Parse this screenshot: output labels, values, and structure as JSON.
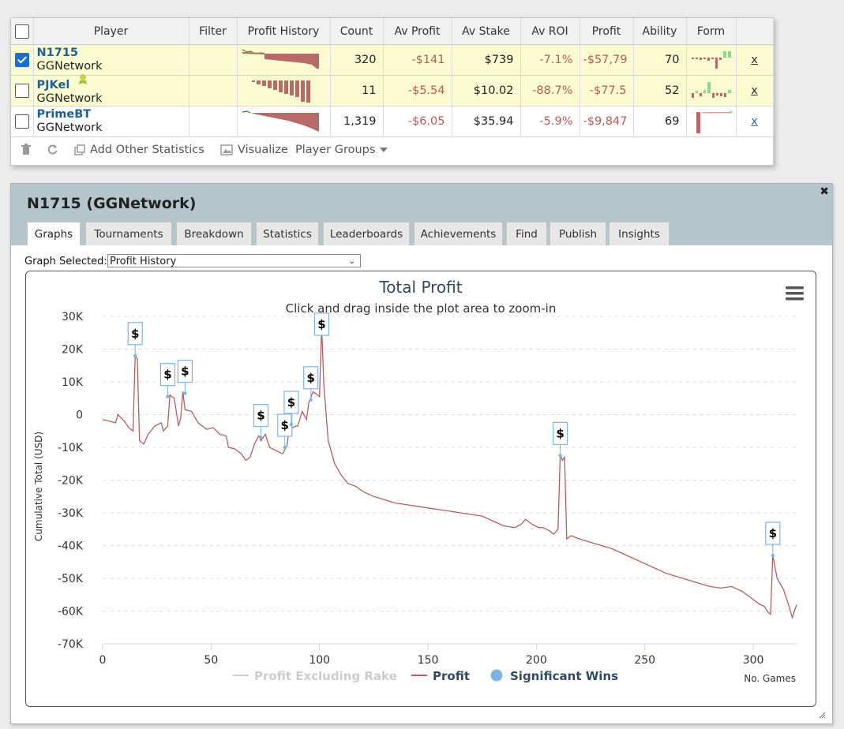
{
  "players_table": {
    "columns": [
      "Player",
      "Filter",
      "Profit History",
      "Count",
      "Av Profit",
      "Av Stake",
      "Av ROI",
      "Profit",
      "Ability",
      "Form"
    ],
    "rows": [
      {
        "name": "N1715",
        "network": "GGNetwork",
        "checked": true,
        "count": "320",
        "av_profit": "-$141",
        "av_stake": "$739",
        "av_roi": "-7.1%",
        "profit": "-$57,79",
        "ability": "70",
        "remove": "x"
      },
      {
        "name": "PJKel",
        "network": "GGNetwork",
        "checked": false,
        "count": "11",
        "av_profit": "-$5.54",
        "av_stake": "$10.02",
        "av_roi": "-88.7%",
        "profit": "-$77.5",
        "ability": "52",
        "remove": "x"
      },
      {
        "name": "PrimeBT",
        "network": "GGNetwork",
        "checked": false,
        "count": "1,319",
        "av_profit": "-$6.05",
        "av_stake": "$35.94",
        "av_roi": "-5.9%",
        "profit": "-$9,847",
        "ability": "69",
        "remove": "x"
      }
    ],
    "toolbar": {
      "add_stats": "Add Other Statistics",
      "visualize": "Visualize",
      "player_groups": "Player Groups"
    }
  },
  "panel": {
    "title": "N1715 (GGNetwork)",
    "tabs": [
      "Graphs",
      "Tournaments",
      "Breakdown",
      "Statistics",
      "Leaderboards",
      "Achievements",
      "Find",
      "Publish",
      "Insights"
    ],
    "active_tab": "Graphs",
    "graph_selected_label": "Graph Selected:",
    "graph_selected_value": "Profit History"
  },
  "chart_data": {
    "type": "line",
    "title": "Total Profit",
    "subtitle": "Click and drag inside the plot area to zoom-in",
    "xlabel": "No. Games",
    "ylabel": "Cumulative Total (USD)",
    "xlim": [
      0,
      320
    ],
    "ylim": [
      -70000,
      30000
    ],
    "x_ticks": [
      "0",
      "50",
      "100",
      "150",
      "200",
      "250",
      "300"
    ],
    "y_ticks": [
      "30K",
      "20K",
      "10K",
      "0",
      "-10K",
      "-20K",
      "-30K",
      "-40K",
      "-50K",
      "-60K",
      "-70K"
    ],
    "grid": "horizontal dashed",
    "legend": [
      "Profit Excluding Rake",
      "Profit",
      "Significant Wins"
    ],
    "legend_position": "bottom-center",
    "colors": {
      "profit": "#b0615c",
      "excl_rake": "#cccccc",
      "wins": "#7db4e6",
      "title": "#334a5e"
    },
    "series": [
      {
        "name": "Profit",
        "points": [
          [
            0,
            -1500
          ],
          [
            3,
            -2000
          ],
          [
            6,
            -2500
          ],
          [
            7,
            0
          ],
          [
            10,
            -2000
          ],
          [
            12,
            -4000
          ],
          [
            14,
            -5000
          ],
          [
            15,
            18000
          ],
          [
            16,
            17000
          ],
          [
            17,
            -8000
          ],
          [
            19,
            -9000
          ],
          [
            21,
            -6000
          ],
          [
            24,
            -3500
          ],
          [
            27,
            -2500
          ],
          [
            28,
            -5000
          ],
          [
            30,
            -3500
          ],
          [
            31,
            6000
          ],
          [
            33,
            5000
          ],
          [
            35,
            -3500
          ],
          [
            36,
            -1000
          ],
          [
            37,
            7000
          ],
          [
            38,
            1500
          ],
          [
            41,
            1000
          ],
          [
            44,
            -2500
          ],
          [
            48,
            -4500
          ],
          [
            51,
            -4000
          ],
          [
            54,
            -6000
          ],
          [
            57,
            -6500
          ],
          [
            58,
            -10000
          ],
          [
            61,
            -10500
          ],
          [
            64,
            -12000
          ],
          [
            66,
            -14000
          ],
          [
            68,
            -13000
          ],
          [
            70,
            -9000
          ],
          [
            72,
            -6500
          ],
          [
            73,
            -8000
          ],
          [
            75,
            -6000
          ],
          [
            77,
            -10000
          ],
          [
            80,
            -11000
          ],
          [
            83,
            -12000
          ],
          [
            85,
            -9500
          ],
          [
            86,
            -4500
          ],
          [
            89,
            -3500
          ],
          [
            90,
            -3500
          ],
          [
            92,
            1000
          ],
          [
            94,
            -1500
          ],
          [
            95,
            3500
          ],
          [
            97,
            7000
          ],
          [
            98,
            6500
          ],
          [
            100,
            5500
          ],
          [
            101,
            27000
          ],
          [
            102,
            9000
          ],
          [
            104,
            -8000
          ],
          [
            107,
            -15000
          ],
          [
            110,
            -18500
          ],
          [
            113,
            -21000
          ],
          [
            117,
            -22000
          ],
          [
            120,
            -23500
          ],
          [
            125,
            -25000
          ],
          [
            130,
            -26000
          ],
          [
            135,
            -27000
          ],
          [
            140,
            -27500
          ],
          [
            145,
            -28000
          ],
          [
            150,
            -28500
          ],
          [
            155,
            -29000
          ],
          [
            160,
            -29500
          ],
          [
            165,
            -30000
          ],
          [
            170,
            -30500
          ],
          [
            175,
            -31000
          ],
          [
            180,
            -32500
          ],
          [
            185,
            -34000
          ],
          [
            190,
            -34500
          ],
          [
            193,
            -33500
          ],
          [
            195,
            -32000
          ],
          [
            198,
            -33500
          ],
          [
            201,
            -34500
          ],
          [
            203,
            -34500
          ],
          [
            206,
            -35500
          ],
          [
            208,
            -36500
          ],
          [
            210,
            -35000
          ],
          [
            211,
            -12000
          ],
          [
            212,
            -14000
          ],
          [
            213,
            -13000
          ],
          [
            214,
            -38000
          ],
          [
            216,
            -37000
          ],
          [
            220,
            -38000
          ],
          [
            225,
            -39000
          ],
          [
            230,
            -40000
          ],
          [
            235,
            -41000
          ],
          [
            240,
            -42500
          ],
          [
            245,
            -44000
          ],
          [
            250,
            -45500
          ],
          [
            255,
            -47000
          ],
          [
            260,
            -48500
          ],
          [
            265,
            -49500
          ],
          [
            270,
            -50500
          ],
          [
            275,
            -51500
          ],
          [
            280,
            -52500
          ],
          [
            285,
            -53000
          ],
          [
            290,
            -52500
          ],
          [
            295,
            -54000
          ],
          [
            300,
            -56500
          ],
          [
            303,
            -58000
          ],
          [
            305,
            -58500
          ],
          [
            307,
            -60500
          ],
          [
            308,
            -61000
          ],
          [
            309,
            -43000
          ],
          [
            311,
            -50000
          ],
          [
            314,
            -53500
          ],
          [
            316,
            -57500
          ],
          [
            318,
            -62000
          ],
          [
            320,
            -58000
          ]
        ]
      }
    ],
    "significant_wins": [
      [
        15,
        18000
      ],
      [
        30,
        5500
      ],
      [
        38,
        6500
      ],
      [
        73,
        -7000
      ],
      [
        84,
        -10000
      ],
      [
        87,
        -3000
      ],
      [
        96,
        4500
      ],
      [
        101,
        30000
      ],
      [
        211,
        -12500
      ],
      [
        309,
        -43000
      ]
    ],
    "win_marker_label": "$"
  }
}
